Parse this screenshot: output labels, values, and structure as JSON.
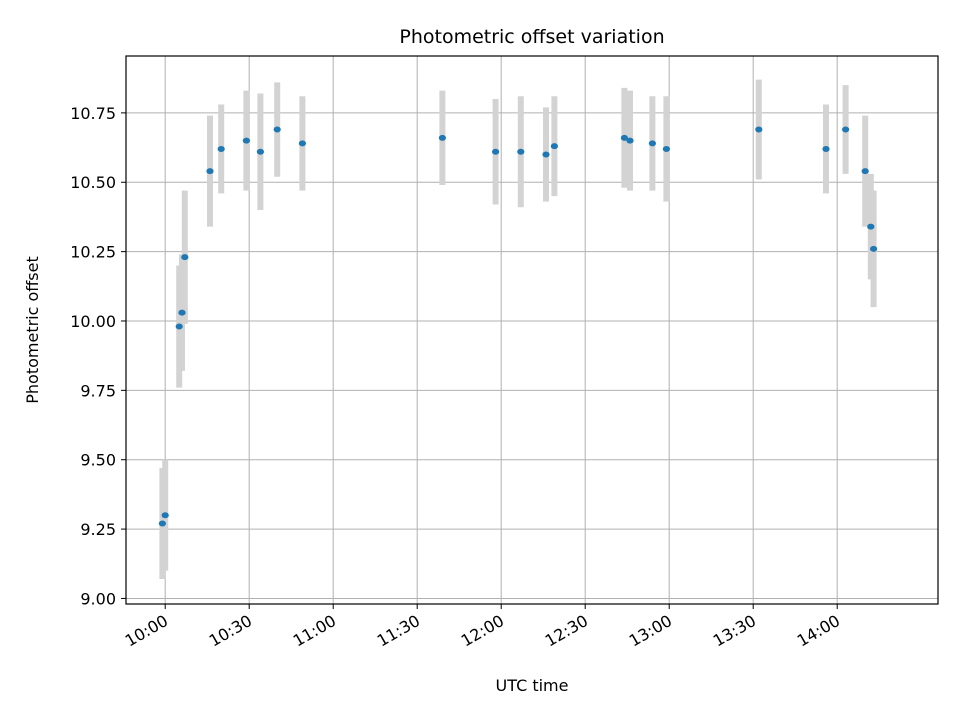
{
  "chart_data": {
    "type": "scatter",
    "title": "Photometric offset variation",
    "xlabel": "UTC time",
    "ylabel": "Photometric offset",
    "grid": true,
    "marker_color": "#1f77b4",
    "errorbar_color": "#d3d3d3",
    "xlim": [
      "09:46",
      "14:36"
    ],
    "ylim": [
      8.98,
      10.955
    ],
    "xticks": [
      "10:00",
      "10:30",
      "11:00",
      "11:30",
      "12:00",
      "12:30",
      "13:00",
      "13:30",
      "14:00"
    ],
    "yticks": [
      "9.00",
      "9.25",
      "9.50",
      "9.75",
      "10.00",
      "10.25",
      "10.50",
      "10.75"
    ],
    "series": [
      {
        "points": [
          {
            "x": "09:59",
            "y": 9.27,
            "err": 0.2
          },
          {
            "x": "10:00",
            "y": 9.3,
            "err": 0.2
          },
          {
            "x": "10:05",
            "y": 9.98,
            "err": 0.22
          },
          {
            "x": "10:06",
            "y": 10.03,
            "err": 0.21
          },
          {
            "x": "10:07",
            "y": 10.23,
            "err": 0.24
          },
          {
            "x": "10:16",
            "y": 10.54,
            "err": 0.2
          },
          {
            "x": "10:20",
            "y": 10.62,
            "err": 0.16
          },
          {
            "x": "10:29",
            "y": 10.65,
            "err": 0.18
          },
          {
            "x": "10:34",
            "y": 10.61,
            "err": 0.21
          },
          {
            "x": "10:40",
            "y": 10.69,
            "err": 0.17
          },
          {
            "x": "10:49",
            "y": 10.64,
            "err": 0.17
          },
          {
            "x": "11:39",
            "y": 10.66,
            "err": 0.17
          },
          {
            "x": "11:58",
            "y": 10.61,
            "err": 0.19
          },
          {
            "x": "12:07",
            "y": 10.61,
            "err": 0.2
          },
          {
            "x": "12:16",
            "y": 10.6,
            "err": 0.17
          },
          {
            "x": "12:19",
            "y": 10.63,
            "err": 0.18
          },
          {
            "x": "12:44",
            "y": 10.66,
            "err": 0.18
          },
          {
            "x": "12:46",
            "y": 10.65,
            "err": 0.18
          },
          {
            "x": "12:54",
            "y": 10.64,
            "err": 0.17
          },
          {
            "x": "12:59",
            "y": 10.62,
            "err": 0.19
          },
          {
            "x": "13:32",
            "y": 10.69,
            "err": 0.18
          },
          {
            "x": "13:56",
            "y": 10.62,
            "err": 0.16
          },
          {
            "x": "14:03",
            "y": 10.69,
            "err": 0.16
          },
          {
            "x": "14:10",
            "y": 10.54,
            "err": 0.2
          },
          {
            "x": "14:12",
            "y": 10.34,
            "err": 0.19
          },
          {
            "x": "14:13",
            "y": 10.26,
            "err": 0.21
          }
        ]
      }
    ]
  }
}
